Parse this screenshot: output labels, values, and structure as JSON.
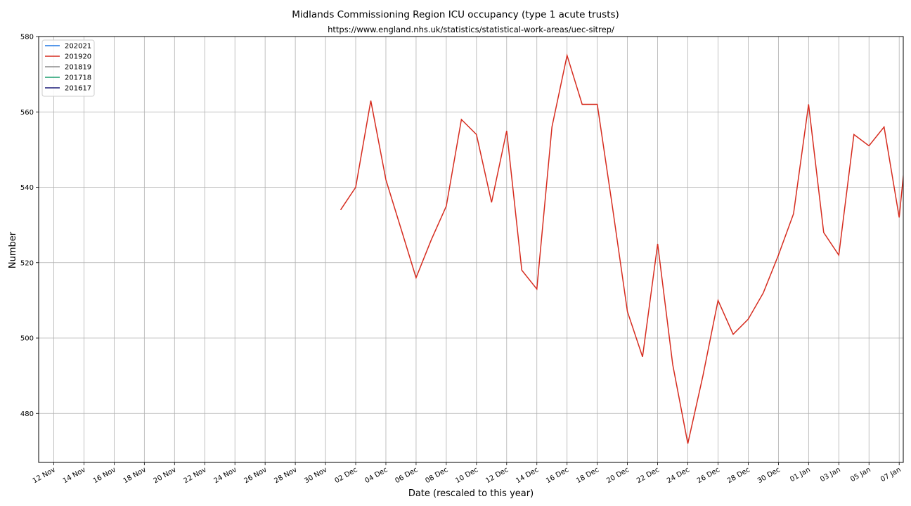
{
  "chart_data": {
    "type": "line",
    "title": "Midlands  Commissioning Region ICU occupancy (type 1 acute trusts)",
    "subtitle": "https://www.england.nhs.uk/statistics/statistical-work-areas/uec-sitrep/",
    "xlabel": "Date (rescaled to this year)",
    "ylabel": "Number",
    "x_range": [
      "2020-11-11",
      "2021-01-07"
    ],
    "ylim": [
      467,
      580
    ],
    "y_ticks": [
      480,
      500,
      520,
      540,
      560,
      580
    ],
    "x_ticks": [
      "12 Nov",
      "14 Nov",
      "16 Nov",
      "18 Nov",
      "20 Nov",
      "22 Nov",
      "24 Nov",
      "26 Nov",
      "28 Nov",
      "30 Nov",
      "02 Dec",
      "04 Dec",
      "06 Dec",
      "08 Dec",
      "10 Dec",
      "12 Dec",
      "14 Dec",
      "16 Dec",
      "18 Dec",
      "20 Dec",
      "22 Dec",
      "24 Dec",
      "26 Dec",
      "28 Dec",
      "30 Dec",
      "01 Jan",
      "03 Jan",
      "05 Jan",
      "07 Jan"
    ],
    "grid": true,
    "legend_position": "top-left",
    "series": [
      {
        "name": "202021",
        "color": "#1f77e4",
        "x": [],
        "y": []
      },
      {
        "name": "201920",
        "color": "#d62c1f",
        "x": [
          "2020-12-01",
          "2020-12-02",
          "2020-12-03",
          "2020-12-04",
          "2020-12-05",
          "2020-12-06",
          "2020-12-07",
          "2020-12-08",
          "2020-12-09",
          "2020-12-10",
          "2020-12-11",
          "2020-12-12",
          "2020-12-13",
          "2020-12-14",
          "2020-12-15",
          "2020-12-16",
          "2020-12-17",
          "2020-12-18",
          "2020-12-19",
          "2020-12-20",
          "2020-12-21",
          "2020-12-22",
          "2020-12-23",
          "2020-12-24",
          "2020-12-25",
          "2020-12-26",
          "2020-12-27",
          "2020-12-28",
          "2020-12-29",
          "2020-12-30",
          "2020-12-31",
          "2021-01-01",
          "2021-01-02",
          "2021-01-03",
          "2021-01-04",
          "2021-01-05",
          "2021-01-06",
          "2021-01-07",
          "2021-01-07T12:00"
        ],
        "y": [
          534,
          540,
          563,
          542,
          529,
          516,
          526,
          535,
          558,
          554,
          536,
          555,
          518,
          513,
          556,
          575,
          562,
          562,
          535,
          507,
          495,
          525,
          493,
          472,
          490,
          510,
          501,
          505,
          512,
          522,
          533,
          562,
          528,
          522,
          554,
          551,
          556,
          532,
          552
        ]
      },
      {
        "name": "201819",
        "color": "#8c8c8c",
        "x": [],
        "y": []
      },
      {
        "name": "201718",
        "color": "#1a9e6f",
        "x": [],
        "y": []
      },
      {
        "name": "201617",
        "color": "#1c1c78",
        "x": [],
        "y": []
      }
    ]
  }
}
